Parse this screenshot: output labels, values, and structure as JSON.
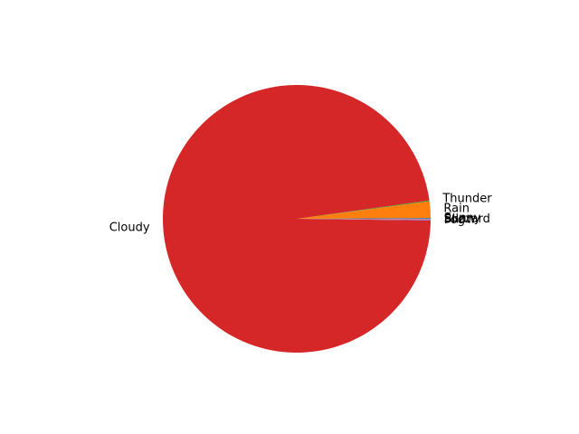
{
  "chart_data": {
    "type": "pie",
    "labels": [
      "Sunny",
      "Rain",
      "Thunder",
      "Cloudy",
      "Fog",
      "Snow",
      "Blizzard"
    ],
    "values": [
      0.1,
      2,
      0.1,
      97.6,
      0.1,
      0.05,
      0.05
    ],
    "colors": [
      "#1f77b4",
      "#ff7f0e",
      "#2ca02c",
      "#d62728",
      "#9467bd",
      "#8c564b",
      "#e377c2"
    ],
    "start_angle": 0,
    "direction": "counterclockwise",
    "title": ""
  }
}
